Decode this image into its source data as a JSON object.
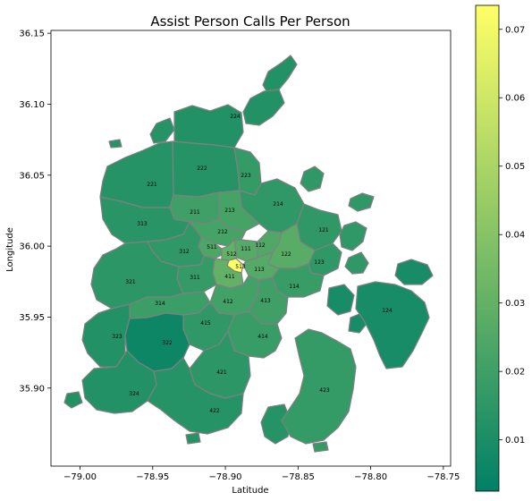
{
  "chart_data": {
    "type": "choropleth",
    "title": "Assist Person Calls Per Person",
    "xlabel": "Latitude",
    "ylabel": "Longitude",
    "xlim": [
      -79.02,
      -78.745
    ],
    "ylim": [
      35.845,
      36.152
    ],
    "xticks": [
      {
        "value": -79.0,
        "label": "−79.00"
      },
      {
        "value": -78.95,
        "label": "−78.95"
      },
      {
        "value": -78.9,
        "label": "−78.90"
      },
      {
        "value": -78.85,
        "label": "−78.85"
      },
      {
        "value": -78.8,
        "label": "−78.80"
      },
      {
        "value": -78.75,
        "label": "−78.75"
      }
    ],
    "yticks": [
      {
        "value": 35.9,
        "label": "35.90"
      },
      {
        "value": 35.95,
        "label": "35.95"
      },
      {
        "value": 36.0,
        "label": "36.00"
      },
      {
        "value": 36.05,
        "label": "36.05"
      },
      {
        "value": 36.1,
        "label": "36.10"
      },
      {
        "value": 36.15,
        "label": "36.15"
      }
    ],
    "colorbar": {
      "colormap": "summer",
      "min": 0.0025,
      "max": 0.0735,
      "ticks": [
        {
          "value": 0.01,
          "label": "0.01"
        },
        {
          "value": 0.02,
          "label": "0.02"
        },
        {
          "value": 0.03,
          "label": "0.03"
        },
        {
          "value": 0.04,
          "label": "0.04"
        },
        {
          "value": 0.05,
          "label": "0.05"
        },
        {
          "value": 0.06,
          "label": "0.06"
        },
        {
          "value": 0.07,
          "label": "0.07"
        }
      ]
    },
    "districts": [
      {
        "id": "224",
        "value": 0.012
      },
      {
        "id": "222",
        "value": 0.013
      },
      {
        "id": "223",
        "value": 0.017
      },
      {
        "id": "221",
        "value": 0.013
      },
      {
        "id": "214",
        "value": 0.016
      },
      {
        "id": "213",
        "value": 0.022
      },
      {
        "id": "211",
        "value": 0.02
      },
      {
        "id": "212",
        "value": 0.022
      },
      {
        "id": "121",
        "value": 0.016
      },
      {
        "id": "313",
        "value": 0.014
      },
      {
        "id": "511",
        "value": 0.024
      },
      {
        "id": "111",
        "value": 0.026
      },
      {
        "id": "112",
        "value": 0.025
      },
      {
        "id": "512",
        "value": 0.03
      },
      {
        "id": "513",
        "value": 0.0735
      },
      {
        "id": "312",
        "value": 0.016
      },
      {
        "id": "122",
        "value": 0.027
      },
      {
        "id": "113",
        "value": 0.026
      },
      {
        "id": "123",
        "value": 0.016
      },
      {
        "id": "411",
        "value": 0.03
      },
      {
        "id": "311",
        "value": 0.017
      },
      {
        "id": "321",
        "value": 0.015
      },
      {
        "id": "114",
        "value": 0.018
      },
      {
        "id": "412",
        "value": 0.021
      },
      {
        "id": "413",
        "value": 0.02
      },
      {
        "id": "314",
        "value": 0.019
      },
      {
        "id": "124",
        "value": 0.009
      },
      {
        "id": "415",
        "value": 0.016
      },
      {
        "id": "323",
        "value": 0.012
      },
      {
        "id": "322",
        "value": 0.006
      },
      {
        "id": "414",
        "value": 0.018
      },
      {
        "id": "421",
        "value": 0.015
      },
      {
        "id": "423",
        "value": 0.017
      },
      {
        "id": "324",
        "value": 0.012
      },
      {
        "id": "422",
        "value": 0.013
      }
    ]
  }
}
